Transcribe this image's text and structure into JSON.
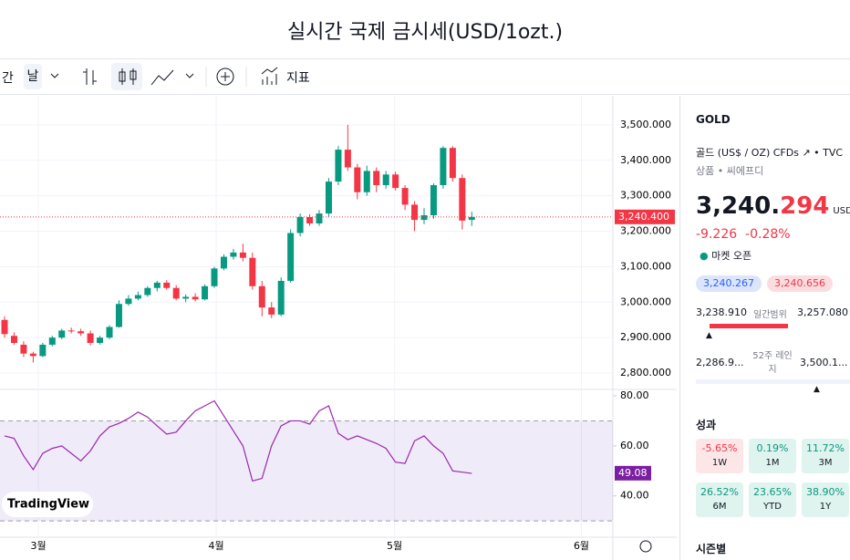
{
  "header": {
    "title": "실시간 국제 금시세(USD/1ozt.)"
  },
  "toolbar": {
    "interval_prefix": "간",
    "interval": "날",
    "indicators": "지표"
  },
  "chart_data": {
    "type": "candlestick",
    "logo": "TradingView",
    "candles": [
      [
        2950,
        2960,
        2900,
        2910
      ],
      [
        2905,
        2915,
        2880,
        2885
      ],
      [
        2880,
        2890,
        2845,
        2855
      ],
      [
        2855,
        2860,
        2830,
        2848
      ],
      [
        2848,
        2885,
        2845,
        2880
      ],
      [
        2880,
        2905,
        2875,
        2900
      ],
      [
        2900,
        2925,
        2895,
        2920
      ],
      [
        2920,
        2928,
        2912,
        2918
      ],
      [
        2918,
        2925,
        2905,
        2912
      ],
      [
        2912,
        2920,
        2878,
        2885
      ],
      [
        2885,
        2905,
        2880,
        2900
      ],
      [
        2900,
        2935,
        2895,
        2930
      ],
      [
        2930,
        3005,
        2928,
        2995
      ],
      [
        2995,
        3020,
        2990,
        3010
      ],
      [
        3010,
        3030,
        3005,
        3020
      ],
      [
        3020,
        3045,
        3015,
        3040
      ],
      [
        3040,
        3060,
        3030,
        3055
      ],
      [
        3055,
        3062,
        3035,
        3040
      ],
      [
        3040,
        3048,
        3005,
        3010
      ],
      [
        3010,
        3022,
        3000,
        3015
      ],
      [
        3015,
        3025,
        3002,
        3008
      ],
      [
        3008,
        3050,
        3005,
        3045
      ],
      [
        3045,
        3100,
        3040,
        3095
      ],
      [
        3095,
        3135,
        3090,
        3128
      ],
      [
        3128,
        3150,
        3120,
        3140
      ],
      [
        3140,
        3165,
        3115,
        3125
      ],
      [
        3125,
        3140,
        3035,
        3045
      ],
      [
        3045,
        3060,
        2960,
        2985
      ],
      [
        2985,
        3000,
        2955,
        2965
      ],
      [
        2965,
        3070,
        2960,
        3060
      ],
      [
        3060,
        3205,
        3055,
        3195
      ],
      [
        3195,
        3250,
        3185,
        3240
      ],
      [
        3240,
        3248,
        3215,
        3222
      ],
      [
        3222,
        3260,
        3215,
        3250
      ],
      [
        3250,
        3350,
        3240,
        3340
      ],
      [
        3340,
        3440,
        3330,
        3430
      ],
      [
        3430,
        3500,
        3370,
        3380
      ],
      [
        3380,
        3390,
        3290,
        3310
      ],
      [
        3310,
        3385,
        3300,
        3370
      ],
      [
        3370,
        3380,
        3310,
        3330
      ],
      [
        3330,
        3370,
        3320,
        3360
      ],
      [
        3360,
        3368,
        3315,
        3322
      ],
      [
        3322,
        3330,
        3260,
        3275
      ],
      [
        3275,
        3285,
        3200,
        3232
      ],
      [
        3232,
        3265,
        3220,
        3245
      ],
      [
        3245,
        3335,
        3235,
        3330
      ],
      [
        3330,
        3440,
        3320,
        3435
      ],
      [
        3435,
        3440,
        3340,
        3350
      ],
      [
        3350,
        3360,
        3205,
        3230
      ],
      [
        3232,
        3255,
        3215,
        3240
      ]
    ],
    "xlim": [
      -0.48,
      63.8
    ],
    "xticks": [
      {
        "value": 3.54,
        "label": "3월"
      },
      {
        "value": 22.2,
        "label": "4월"
      },
      {
        "value": 40.9,
        "label": "5월"
      },
      {
        "value": 60.5,
        "label": "6월"
      }
    ],
    "ylim": [
      2759,
      3582
    ],
    "yticks": [
      {
        "value": 2800,
        "label": "2,800.000"
      },
      {
        "value": 2900,
        "label": "2,900.000"
      },
      {
        "value": 3000,
        "label": "3,000.000"
      },
      {
        "value": 3100,
        "label": "3,100.000"
      },
      {
        "value": 3200,
        "label": "3,200.000"
      },
      {
        "value": 3300,
        "label": "3,300.000"
      },
      {
        "value": 3400,
        "label": "3,400.000"
      },
      {
        "value": 3500,
        "label": "3,500.000"
      }
    ],
    "last_price": {
      "value": 3240.4,
      "label": "3,240.400"
    },
    "rsi": {
      "values": [
        64,
        63,
        56,
        50.5,
        57,
        59,
        60,
        57,
        54,
        58,
        64,
        67.6,
        69,
        71,
        73.5,
        71.5,
        68,
        64.7,
        65.5,
        70,
        74,
        76,
        78,
        72,
        66,
        60,
        46,
        47,
        60,
        68,
        70,
        70,
        68.7,
        74,
        76,
        65,
        62.5,
        64,
        62.5,
        61,
        59,
        53.5,
        53,
        62,
        64,
        60,
        57,
        50,
        49.5,
        49
      ],
      "ylim": [
        27.5,
        82.2
      ],
      "band": [
        30,
        70
      ],
      "yticks": [
        {
          "value": 40,
          "label": "40.00"
        },
        {
          "value": 60,
          "label": "60.00"
        },
        {
          "value": 80,
          "label": "80.00"
        }
      ],
      "last": {
        "value": 49.08,
        "label": "49.08"
      }
    }
  },
  "panel": {
    "symbol": "GOLD",
    "name": "골드 (US$ / OZ) CFDs",
    "source": "TVC",
    "category": "상품",
    "category_type": "씨에프디",
    "price_main": "3,240.",
    "price_frac": "294",
    "currency": "USD",
    "change": "-9.226",
    "change_pct": "-0.28%",
    "status": "마켓 오픈",
    "bid": "3,240.267",
    "ask": "3,240.656",
    "day_low": "3,238.910",
    "day_range_label": "일간범위",
    "day_high": "3,257.080",
    "year_low": "2,286.9...",
    "year_range_label": "52주 레인지",
    "year_high": "3,500.1...",
    "performance_title": "성과",
    "performance": [
      {
        "value": "-5.65%",
        "period": "1W"
      },
      {
        "value": "0.19%",
        "period": "1M"
      },
      {
        "value": "11.72%",
        "period": "3M"
      },
      {
        "value": "26.52%",
        "period": "6M"
      },
      {
        "value": "23.65%",
        "period": "YTD"
      },
      {
        "value": "38.90%",
        "period": "1Y"
      }
    ],
    "seasonal_title": "시즌별"
  }
}
